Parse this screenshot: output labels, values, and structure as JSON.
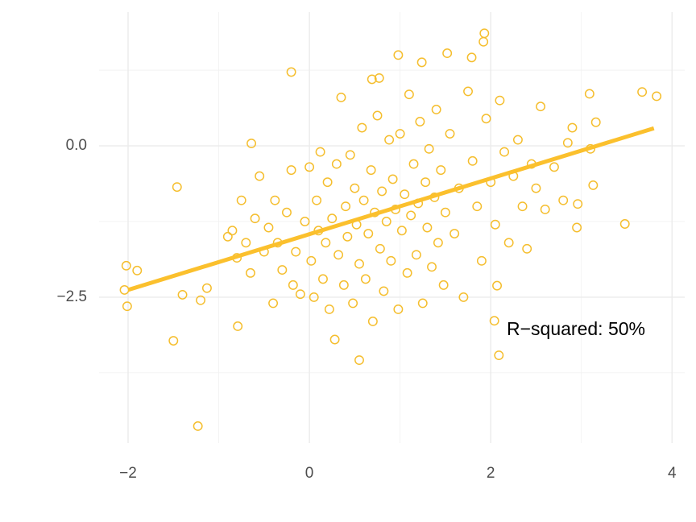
{
  "chart_data": {
    "type": "scatter",
    "x": [
      -2.02,
      -1.9,
      -2.04,
      -2.01,
      -1.46,
      -1.5,
      -1.23,
      -1.13,
      -1.2,
      -1.4,
      -0.2,
      -0.64,
      -0.79,
      0.55,
      1.93,
      1.92,
      3.67,
      3.83,
      3.48,
      2.04,
      2.09,
      2.07,
      0.98,
      1.24,
      1.52,
      1.79,
      0.69,
      0.77,
      3.09,
      3.16,
      3.13,
      2.96,
      -0.9,
      -0.85,
      -0.8,
      -0.75,
      -0.7,
      -0.65,
      -0.6,
      -0.55,
      -0.5,
      -0.45,
      -0.4,
      -0.38,
      -0.35,
      -0.3,
      -0.25,
      -0.2,
      -0.18,
      -0.15,
      -0.1,
      -0.05,
      0,
      0.02,
      0.05,
      0.08,
      0.1,
      0.12,
      0.15,
      0.18,
      0.2,
      0.22,
      0.25,
      0.28,
      0.3,
      0.32,
      0.35,
      0.38,
      0.4,
      0.42,
      0.45,
      0.48,
      0.5,
      0.52,
      0.55,
      0.58,
      0.6,
      0.62,
      0.65,
      0.68,
      0.7,
      0.72,
      0.75,
      0.78,
      0.8,
      0.82,
      0.85,
      0.88,
      0.9,
      0.92,
      0.95,
      0.98,
      1.0,
      1.02,
      1.05,
      1.08,
      1.1,
      1.12,
      1.15,
      1.18,
      1.2,
      1.22,
      1.25,
      1.28,
      1.3,
      1.32,
      1.35,
      1.38,
      1.4,
      1.42,
      1.45,
      1.48,
      1.5,
      1.55,
      1.6,
      1.65,
      1.7,
      1.75,
      1.8,
      1.85,
      1.9,
      1.95,
      2.0,
      2.05,
      2.1,
      2.15,
      2.2,
      2.25,
      2.3,
      2.35,
      2.4,
      2.45,
      2.5,
      2.55,
      2.6,
      2.7,
      2.8,
      2.85,
      2.9,
      2.95,
      3.1
    ],
    "values": [
      -1.98,
      -2.06,
      -2.38,
      -2.65,
      -0.68,
      -3.22,
      -4.63,
      -2.35,
      -2.55,
      -2.46,
      1.22,
      0.04,
      -2.98,
      -3.54,
      1.86,
      1.72,
      0.89,
      0.82,
      -1.29,
      -2.89,
      -3.46,
      -2.31,
      1.5,
      1.38,
      1.53,
      1.46,
      1.1,
      1.12,
      0.86,
      0.39,
      -0.65,
      -0.96,
      -1.5,
      -1.4,
      -1.85,
      -0.9,
      -1.6,
      -2.1,
      -1.2,
      -0.5,
      -1.75,
      -1.35,
      -2.6,
      -0.9,
      -1.6,
      -2.05,
      -1.1,
      -0.4,
      -2.3,
      -1.75,
      -2.45,
      -1.25,
      -0.35,
      -1.9,
      -2.5,
      -0.9,
      -1.4,
      -0.1,
      -2.2,
      -1.6,
      -0.6,
      -2.7,
      -1.2,
      -3.2,
      -0.3,
      -1.8,
      0.8,
      -2.3,
      -1.0,
      -1.5,
      -0.15,
      -2.6,
      -0.7,
      -1.3,
      -1.95,
      0.3,
      -0.9,
      -2.2,
      -1.45,
      -0.4,
      -2.9,
      -1.1,
      0.5,
      -1.7,
      -0.75,
      -2.4,
      -1.25,
      0.1,
      -1.9,
      -0.55,
      -1.05,
      -2.7,
      0.2,
      -1.4,
      -0.8,
      -2.1,
      0.85,
      -1.15,
      -0.3,
      -1.8,
      -0.95,
      0.4,
      -2.6,
      -0.6,
      -1.35,
      -0.05,
      -2.0,
      -0.85,
      0.6,
      -1.6,
      -0.4,
      -2.3,
      -1.1,
      0.2,
      -1.45,
      -0.7,
      -2.5,
      0.9,
      -0.25,
      -1.0,
      -1.9,
      0.45,
      -0.6,
      -1.3,
      0.75,
      -0.1,
      -1.6,
      -0.5,
      0.1,
      -1.0,
      -1.7,
      -0.3,
      -0.7,
      0.65,
      -1.05,
      -0.35,
      -0.9,
      0.05,
      0.3,
      -1.35,
      -0.05
    ],
    "color": "#f5be2e",
    "fit": {
      "x": [
        -2,
        3.8
      ],
      "y": [
        -2.38,
        0.29
      ],
      "color": "#fbc02d"
    },
    "annotation": "R−squared: 50%",
    "xlim": [
      -2.32,
      4.14
    ],
    "ylim": [
      -4.91,
      2.21
    ],
    "xticks": [
      {
        "value": -2,
        "label": "−2"
      },
      0,
      2,
      4
    ],
    "yticks": [
      {
        "value": 0,
        "label": "0.0"
      },
      {
        "value": -2.5,
        "label": "−2.5"
      }
    ],
    "x_minor_grid": [
      -1,
      1,
      3
    ],
    "y_minor_grid": [
      1.25,
      -1.25,
      -3.75
    ],
    "grid": true
  }
}
